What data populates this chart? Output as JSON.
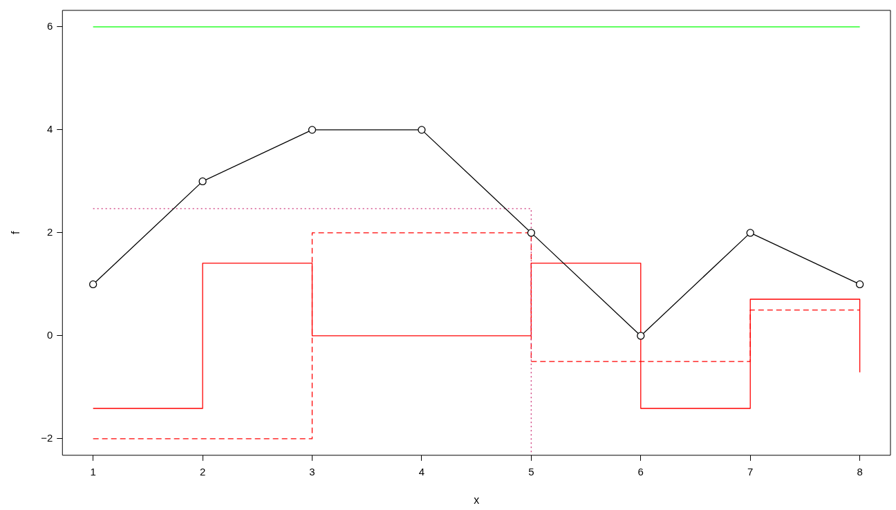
{
  "chart_data": {
    "type": "line",
    "xlabel": "x",
    "ylabel": "f",
    "xlim": [
      0.72,
      8.28
    ],
    "xticks": [
      1,
      2,
      3,
      4,
      5,
      6,
      7,
      8
    ],
    "ylim": [
      -2.32,
      6.32
    ],
    "yticks": [
      {
        "value": -2,
        "label": "−2"
      },
      0,
      2,
      4,
      6
    ],
    "grid": false,
    "legend": false,
    "series": [
      {
        "type": "line",
        "color": "#00ff00",
        "x": [
          1,
          8
        ],
        "values": [
          6,
          6
        ],
        "marker": "none",
        "line_style": "solid"
      },
      {
        "type": "line",
        "color": "#000000",
        "x": [
          1,
          2,
          3,
          4,
          5,
          6,
          7,
          8
        ],
        "values": [
          1,
          3,
          4,
          4,
          2,
          0,
          2,
          1
        ],
        "marker": "circle",
        "line_style": "solid"
      },
      {
        "type": "line",
        "color": "#cc3377",
        "x": [
          1,
          5,
          5
        ],
        "values": [
          2.47,
          2.47,
          -2.32
        ],
        "marker": "none",
        "line_style": "dotted"
      },
      {
        "type": "step",
        "color": "#ff0000",
        "x": [
          1,
          2,
          3,
          4,
          5,
          6,
          7,
          8
        ],
        "values": [
          -1.41,
          1.41,
          0,
          0,
          1.41,
          -1.41,
          0.71,
          -0.71
        ],
        "marker": "none",
        "line_style": "solid"
      },
      {
        "type": "step",
        "color": "#ff0000",
        "x": [
          1,
          3,
          5,
          7,
          8
        ],
        "values": [
          -2,
          2,
          -0.5,
          0.5,
          0.5
        ],
        "marker": "none",
        "line_style": "dashed"
      }
    ]
  }
}
